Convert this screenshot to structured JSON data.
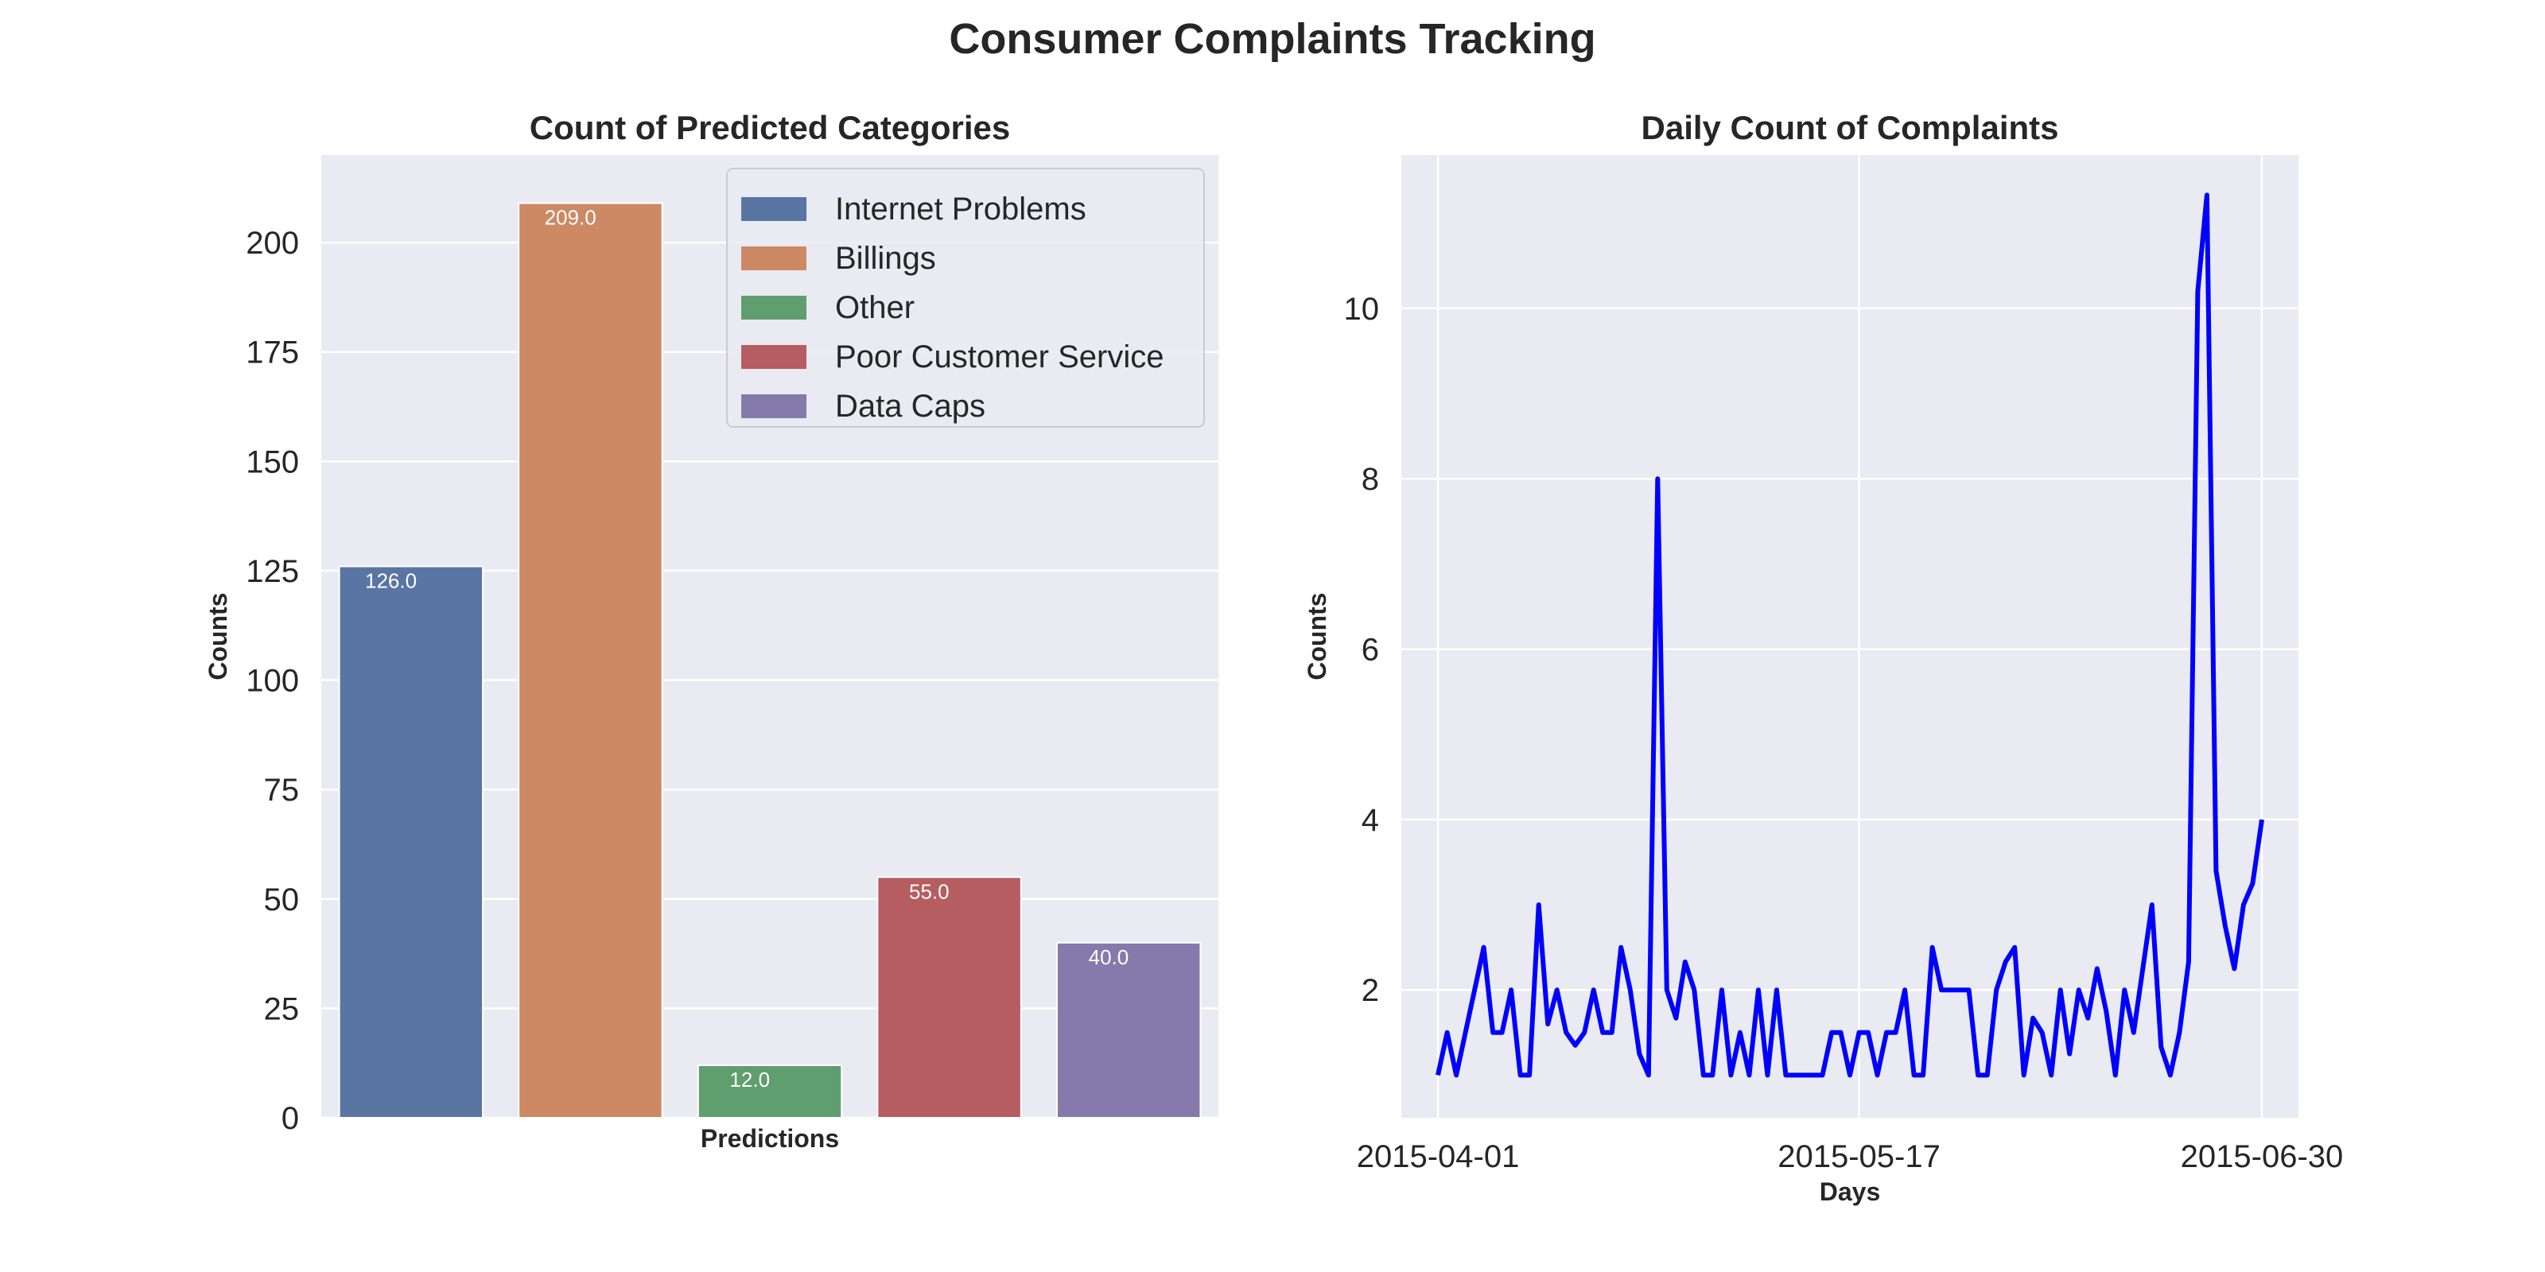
{
  "title": "Consumer Complaints Tracking",
  "chart_data": [
    {
      "type": "bar",
      "title": "Count of Predicted Categories",
      "xlabel": "Predictions",
      "ylabel": "Counts",
      "ylim": [
        0,
        220
      ],
      "yticks": [
        0,
        25,
        50,
        75,
        100,
        125,
        150,
        175,
        200
      ],
      "grid": true,
      "legend_position": "top-right",
      "categories": [
        "Internet Problems",
        "Billings",
        "Other",
        "Poor Customer Service",
        "Data Caps"
      ],
      "values": [
        126,
        209,
        12,
        55,
        40
      ],
      "bar_labels": [
        "126.0",
        "209.0",
        "12.0",
        "55.0",
        "40.0"
      ],
      "colors": [
        "#5975a4",
        "#cc8963",
        "#5f9e6e",
        "#b55d60",
        "#857aab"
      ]
    },
    {
      "type": "line",
      "title": "Daily Count of Complaints",
      "xlabel": "Days",
      "ylabel": "Counts",
      "xlim": [
        "2015-03-28",
        "2015-07-04"
      ],
      "ylim": [
        0.5,
        11.8
      ],
      "xticks": [
        "2015-04-01",
        "2015-05-17",
        "2015-06-30"
      ],
      "yticks": [
        2,
        4,
        6,
        8,
        10
      ],
      "grid": true,
      "color": "#0000ff",
      "series": [
        {
          "x": [
            "2015-04-01",
            "2015-04-02",
            "2015-04-03",
            "2015-04-04",
            "2015-04-05",
            "2015-04-06",
            "2015-04-07",
            "2015-04-08",
            "2015-04-09",
            "2015-04-10",
            "2015-04-11",
            "2015-04-12",
            "2015-04-13",
            "2015-04-14",
            "2015-04-15",
            "2015-04-16",
            "2015-04-17",
            "2015-04-18",
            "2015-04-19",
            "2015-04-20",
            "2015-04-21",
            "2015-04-22",
            "2015-04-23",
            "2015-04-24",
            "2015-04-25",
            "2015-04-26",
            "2015-04-27",
            "2015-04-28",
            "2015-04-29",
            "2015-04-30",
            "2015-05-01",
            "2015-05-02",
            "2015-05-03",
            "2015-05-04",
            "2015-05-05",
            "2015-05-06",
            "2015-05-07",
            "2015-05-08",
            "2015-05-09",
            "2015-05-10",
            "2015-05-11",
            "2015-05-12",
            "2015-05-13",
            "2015-05-14",
            "2015-05-15",
            "2015-05-16",
            "2015-05-17",
            "2015-05-18",
            "2015-05-19",
            "2015-05-20",
            "2015-05-21",
            "2015-05-22",
            "2015-05-23",
            "2015-05-24",
            "2015-05-25",
            "2015-05-26",
            "2015-05-27",
            "2015-05-28",
            "2015-05-29",
            "2015-05-30",
            "2015-05-31",
            "2015-06-01",
            "2015-06-02",
            "2015-06-03",
            "2015-06-04",
            "2015-06-05",
            "2015-06-06",
            "2015-06-07",
            "2015-06-08",
            "2015-06-09",
            "2015-06-10",
            "2015-06-11",
            "2015-06-12",
            "2015-06-13",
            "2015-06-14",
            "2015-06-15",
            "2015-06-16",
            "2015-06-17",
            "2015-06-18",
            "2015-06-19",
            "2015-06-20",
            "2015-06-21",
            "2015-06-22",
            "2015-06-23",
            "2015-06-24",
            "2015-06-25",
            "2015-06-26",
            "2015-06-27",
            "2015-06-28",
            "2015-06-29",
            "2015-06-30"
          ],
          "y": [
            1,
            1.5,
            1,
            1.5,
            2,
            2.5,
            1.5,
            1.5,
            2,
            1,
            1,
            3,
            1.6,
            2,
            1.5,
            1.35,
            1.5,
            2,
            1.5,
            1.5,
            2.5,
            2,
            1.25,
            1,
            8,
            2,
            1.67,
            2.33,
            2,
            1,
            1,
            2,
            1,
            1.5,
            1,
            2,
            1,
            2,
            1,
            1,
            1,
            1,
            1,
            1.5,
            1.5,
            1,
            1.5,
            1.5,
            1,
            1.5,
            1.5,
            2,
            1,
            1,
            2.5,
            2,
            2,
            2,
            2,
            1,
            1,
            2,
            2.33,
            2.5,
            1,
            1.67,
            1.5,
            1,
            2,
            1.25,
            2,
            1.67,
            2.25,
            1.75,
            1,
            2,
            1.5,
            2.25,
            3,
            1.33,
            1,
            1.5,
            2.33,
            10.2,
            11.33,
            3.4,
            2.75,
            2.25,
            3,
            3.25,
            4
          ]
        }
      ]
    }
  ]
}
